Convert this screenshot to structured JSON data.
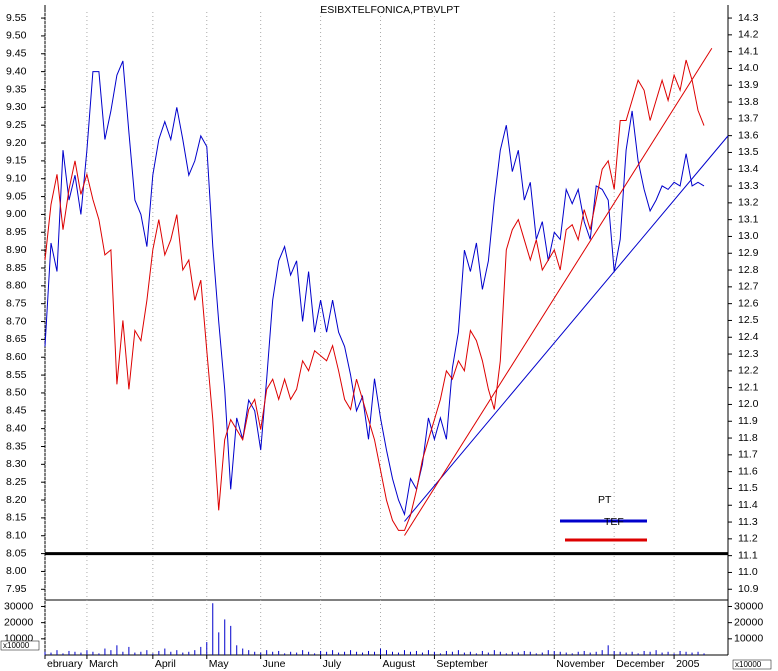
{
  "chart_data": {
    "type": "line",
    "title": "ESIBXTELFONICA,PTBVLPT",
    "xlim": [
      0,
      114
    ],
    "xticks": [
      {
        "value": 0,
        "label": "ebruary"
      },
      {
        "value": 7,
        "label": "March"
      },
      {
        "value": 18,
        "label": "April"
      },
      {
        "value": 27,
        "label": "May"
      },
      {
        "value": 36,
        "label": "June"
      },
      {
        "value": 46,
        "label": "July"
      },
      {
        "value": 56,
        "label": "August"
      },
      {
        "value": 65,
        "label": "September"
      },
      {
        "value": 85,
        "label": "November"
      },
      {
        "value": 95,
        "label": "December"
      },
      {
        "value": 105,
        "label": "2005"
      }
    ],
    "ylim": [
      7.92,
      9.567
    ],
    "yticks": [
      9.55,
      {
        "value": 9.5,
        "label": "9.50"
      },
      9.45,
      {
        "value": 9.4,
        "label": "9.40"
      },
      9.35,
      {
        "value": 9.3,
        "label": "9.30"
      },
      9.25,
      {
        "value": 9.2,
        "label": "9.20"
      },
      9.15,
      {
        "value": 9.1,
        "label": "9.10"
      },
      9.05,
      {
        "value": 9,
        "label": "9.00"
      },
      8.95,
      {
        "value": 8.9,
        "label": "8.90"
      },
      8.85,
      {
        "value": 8.8,
        "label": "8.80"
      },
      8.75,
      {
        "value": 8.7,
        "label": "8.70"
      },
      8.65,
      {
        "value": 8.6,
        "label": "8.60"
      },
      8.55,
      {
        "value": 8.5,
        "label": "8.50"
      },
      8.45,
      {
        "value": 8.4,
        "label": "8.40"
      },
      8.35,
      {
        "value": 8.3,
        "label": "8.30"
      },
      8.25,
      {
        "value": 8.2,
        "label": "8.20"
      },
      8.15,
      {
        "value": 8.1,
        "label": "8.10"
      },
      8.05,
      {
        "value": 8,
        "label": "8.00"
      },
      7.95
    ],
    "y2lim": [
      10.836,
      14.336
    ],
    "y2ticks": [
      14.3,
      14.2,
      14.1,
      {
        "value": 14,
        "label": "14.0"
      },
      13.9,
      13.8,
      13.7,
      13.6,
      13.5,
      13.4,
      13.3,
      13.2,
      13.1,
      {
        "value": 13,
        "label": "13.0"
      },
      12.9,
      12.8,
      12.7,
      12.6,
      12.5,
      12.4,
      12.3,
      12.2,
      12.1,
      {
        "value": 12,
        "label": "12.0"
      },
      11.9,
      11.8,
      11.7,
      11.6,
      11.5,
      11.4,
      11.3,
      11.2,
      11.1,
      {
        "value": 11,
        "label": "11.0"
      },
      10.9
    ],
    "hline": 8.05,
    "series": [
      {
        "name": "PT",
        "color": "#0000cc",
        "values": [
          8.63,
          8.92,
          8.84,
          9.18,
          9.04,
          9.11,
          9.0,
          9.18,
          9.4,
          9.4,
          9.21,
          9.29,
          9.39,
          9.43,
          9.23,
          9.04,
          9.0,
          8.91,
          9.11,
          9.21,
          9.26,
          9.21,
          9.3,
          9.21,
          9.11,
          9.15,
          9.22,
          9.19,
          8.91,
          8.7,
          8.51,
          8.23,
          8.43,
          8.37,
          8.48,
          8.45,
          8.34,
          8.54,
          8.76,
          8.87,
          8.91,
          8.83,
          8.87,
          8.7,
          8.84,
          8.67,
          8.76,
          8.67,
          8.76,
          8.67,
          8.63,
          8.55,
          8.45,
          8.49,
          8.37,
          8.54,
          8.43,
          8.34,
          8.26,
          8.2,
          8.16,
          8.26,
          8.23,
          8.3,
          8.43,
          8.37,
          8.43,
          8.37,
          8.57,
          8.67,
          8.9,
          8.84,
          8.92,
          8.79,
          8.87,
          9.04,
          9.18,
          9.25,
          9.12,
          9.18,
          9.04,
          9.09,
          8.93,
          8.98,
          8.87,
          8.95,
          8.93,
          9.07,
          9.03,
          9.07,
          8.98,
          8.93,
          9.08,
          9.07,
          9.04,
          8.84,
          8.93,
          9.18,
          9.29,
          9.15,
          9.07,
          9.01,
          9.04,
          9.08,
          9.07,
          9.09,
          9.08,
          9.17,
          9.08,
          9.09,
          9.08
        ],
        "trend": {
          "x": [
            60,
            114
          ],
          "values": [
            8.14,
            9.22
          ]
        }
      },
      {
        "name": "TEF",
        "color": "#dd0000",
        "axis": "y2",
        "values": [
          12.86,
          13.19,
          13.37,
          13.04,
          13.28,
          13.45,
          13.25,
          13.37,
          13.22,
          13.1,
          12.89,
          12.92,
          12.12,
          12.5,
          12.09,
          12.44,
          12.38,
          12.62,
          12.92,
          13.1,
          12.89,
          12.98,
          13.13,
          12.8,
          12.86,
          12.62,
          12.74,
          12.32,
          11.91,
          11.37,
          11.79,
          11.91,
          11.85,
          11.79,
          11.97,
          12.03,
          11.85,
          12.09,
          12.15,
          12.03,
          12.15,
          12.03,
          12.09,
          12.26,
          12.2,
          12.32,
          12.29,
          12.26,
          12.35,
          12.2,
          12.03,
          11.97,
          12.15,
          12.03,
          11.91,
          11.79,
          11.61,
          11.43,
          11.31,
          11.25,
          11.25,
          11.34,
          11.49,
          11.67,
          11.79,
          11.91,
          12.03,
          12.2,
          12.15,
          12.26,
          12.2,
          12.44,
          12.38,
          12.26,
          12.09,
          11.97,
          12.26,
          12.92,
          13.04,
          13.1,
          12.98,
          12.86,
          12.98,
          12.8,
          12.86,
          12.92,
          12.8,
          13.04,
          13.07,
          12.98,
          13.16,
          13.04,
          13.22,
          13.4,
          13.45,
          13.28,
          13.69,
          13.69,
          13.81,
          13.93,
          13.87,
          13.69,
          13.81,
          13.93,
          13.81,
          13.96,
          13.87,
          14.05,
          13.93,
          13.75,
          13.66
        ],
        "trend": {
          "x": [
            60,
            111.3
          ],
          "values": [
            11.22,
            14.12
          ]
        }
      }
    ],
    "volume": {
      "unit": "x10000",
      "color": "#0000cc",
      "ylim": [
        0,
        34000
      ],
      "yticks": [
        10000,
        20000,
        30000
      ],
      "values": [
        2000,
        1500,
        3000,
        1000,
        2500,
        2000,
        1500,
        3000,
        2000,
        1000,
        4000,
        3000,
        6000,
        2000,
        5000,
        1500,
        2000,
        3000,
        1000,
        2500,
        4000,
        2000,
        3000,
        1500,
        2000,
        3000,
        5000,
        8000,
        32000,
        14000,
        22000,
        18000,
        6000,
        4000,
        3000,
        2000,
        1500,
        3000,
        2000,
        2500,
        1000,
        2000,
        1500,
        3000,
        2000,
        1000,
        2500,
        2000,
        3000,
        1500,
        2000,
        3000,
        2000,
        1500,
        2500,
        2000,
        4000,
        3000,
        2000,
        1500,
        3000,
        2000,
        2500,
        1500,
        3000,
        2000,
        1000,
        2500,
        2000,
        3000,
        1500,
        2000,
        1000,
        2500,
        1500,
        3000,
        2000,
        1000,
        2000,
        1500,
        2500,
        2000,
        1000,
        1500,
        3000,
        2500,
        2000,
        1500,
        1000,
        2000,
        2500,
        1500,
        2000,
        3000,
        6000,
        2500,
        2000,
        1500,
        2000,
        1000,
        2500,
        2000,
        3000,
        1500,
        2000,
        1000,
        2500,
        2000,
        1500,
        2000,
        1000
      ]
    }
  }
}
